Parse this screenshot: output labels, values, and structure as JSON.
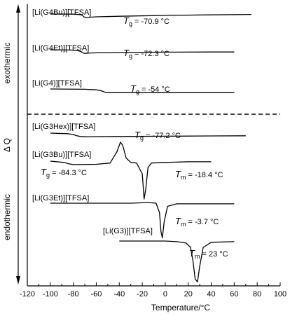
{
  "chart_data": {
    "type": "line",
    "xlabel": "Temperature/°C",
    "ylabel": "Δ Q",
    "xlim": [
      -120,
      100
    ],
    "x_ticks": [
      -120,
      -100,
      -80,
      -60,
      -40,
      -20,
      0,
      20,
      40,
      60,
      80,
      100
    ],
    "tick_labels": [
      "-120",
      "-100",
      "-80",
      "-60",
      "-40",
      "-20",
      "0",
      "20",
      "40",
      "60",
      "80",
      "100"
    ],
    "regions": [
      {
        "label": "exothermic",
        "position": "upper"
      },
      {
        "label": "endothermic",
        "position": "lower"
      }
    ],
    "series": [
      {
        "name": "[Li(G4Bu)][TFSA]",
        "annotation": "Tg = -70.9 °C",
        "x": [
          -100,
          -80,
          -74,
          -72,
          -70.9,
          -69,
          -66,
          -60,
          -40,
          0,
          40,
          75
        ],
        "y": [
          0.0,
          -0.05,
          -0.2,
          -0.5,
          -1.0,
          -1.25,
          -1.15,
          -1.0,
          -0.8,
          -0.5,
          -0.3,
          -0.15
        ]
      },
      {
        "name": "[Li(G4Et)][TFSA]",
        "annotation": "Tg = -72.3 °C",
        "x": [
          -100,
          -82,
          -76,
          -73,
          -72.3,
          -70,
          -67,
          -60,
          -40,
          0,
          40,
          60
        ],
        "y": [
          0.0,
          -0.1,
          -0.3,
          -0.7,
          -1.0,
          -1.3,
          -1.2,
          -1.1,
          -1.0,
          -0.85,
          -0.8,
          -0.8
        ]
      },
      {
        "name": "[Li(G4)][TFSA]",
        "annotation": "Tg = -54 °C",
        "x": [
          -100,
          -70,
          -60,
          -56,
          -54,
          -52,
          -48,
          -40,
          0,
          40,
          60
        ],
        "y": [
          0.0,
          -0.1,
          -0.3,
          -0.6,
          -0.9,
          -1.2,
          -1.3,
          -1.3,
          -1.3,
          -1.3,
          -1.3
        ]
      },
      {
        "name": "[Li(G3Hex)][TFSA]",
        "annotation": "Tg = -77.2 °C",
        "x": [
          -100,
          -85,
          -80,
          -77.2,
          -74,
          -70,
          -60,
          -40,
          0,
          40,
          70
        ],
        "y": [
          0.0,
          -0.2,
          -0.5,
          -0.9,
          -1.2,
          -1.3,
          -1.25,
          -1.2,
          -1.1,
          -1.0,
          -0.95
        ]
      },
      {
        "name": "[Li(G3Bu)][TFSA]",
        "annotation": "Tg = -84.3 °C",
        "annotation2": "Tm = -18.4 °C",
        "x": [
          -100,
          -88,
          -84.3,
          -80,
          -60,
          -48,
          -42,
          -39,
          -37,
          -34,
          -30,
          -25,
          -20,
          -18.4,
          -17,
          -15,
          -12,
          0,
          20,
          40
        ],
        "y": [
          0.0,
          -0.2,
          -0.4,
          -0.55,
          -0.5,
          -0.3,
          1.5,
          3.0,
          2.5,
          0.5,
          -0.2,
          -0.3,
          -2.0,
          -6.0,
          -4.5,
          -1.0,
          -0.3,
          -0.2,
          -0.1,
          -0.1
        ]
      },
      {
        "name": "[Li(G3Et)][TFSA]",
        "annotation": "Tm = -3.7 °C",
        "x": [
          -100,
          -60,
          -30,
          -15,
          -8,
          -5,
          -3.7,
          -2.5,
          -1,
          2,
          10,
          30,
          60
        ],
        "y": [
          0.0,
          0.0,
          0.0,
          0.1,
          0.0,
          -1.5,
          -4.5,
          -5.5,
          -3.0,
          -0.5,
          -0.1,
          -0.1,
          -0.1
        ]
      },
      {
        "name": "[Li(G3)][TFSA]",
        "annotation": "Tm = 23 °C",
        "x": [
          -40,
          -20,
          0,
          10,
          18,
          22,
          24,
          26,
          28,
          30,
          33,
          40,
          60
        ],
        "y": [
          0.0,
          0.0,
          0.0,
          -0.1,
          -0.3,
          -1.0,
          -3.0,
          -6.0,
          -6.5,
          -4.0,
          -1.0,
          -0.2,
          -0.1
        ]
      }
    ]
  }
}
